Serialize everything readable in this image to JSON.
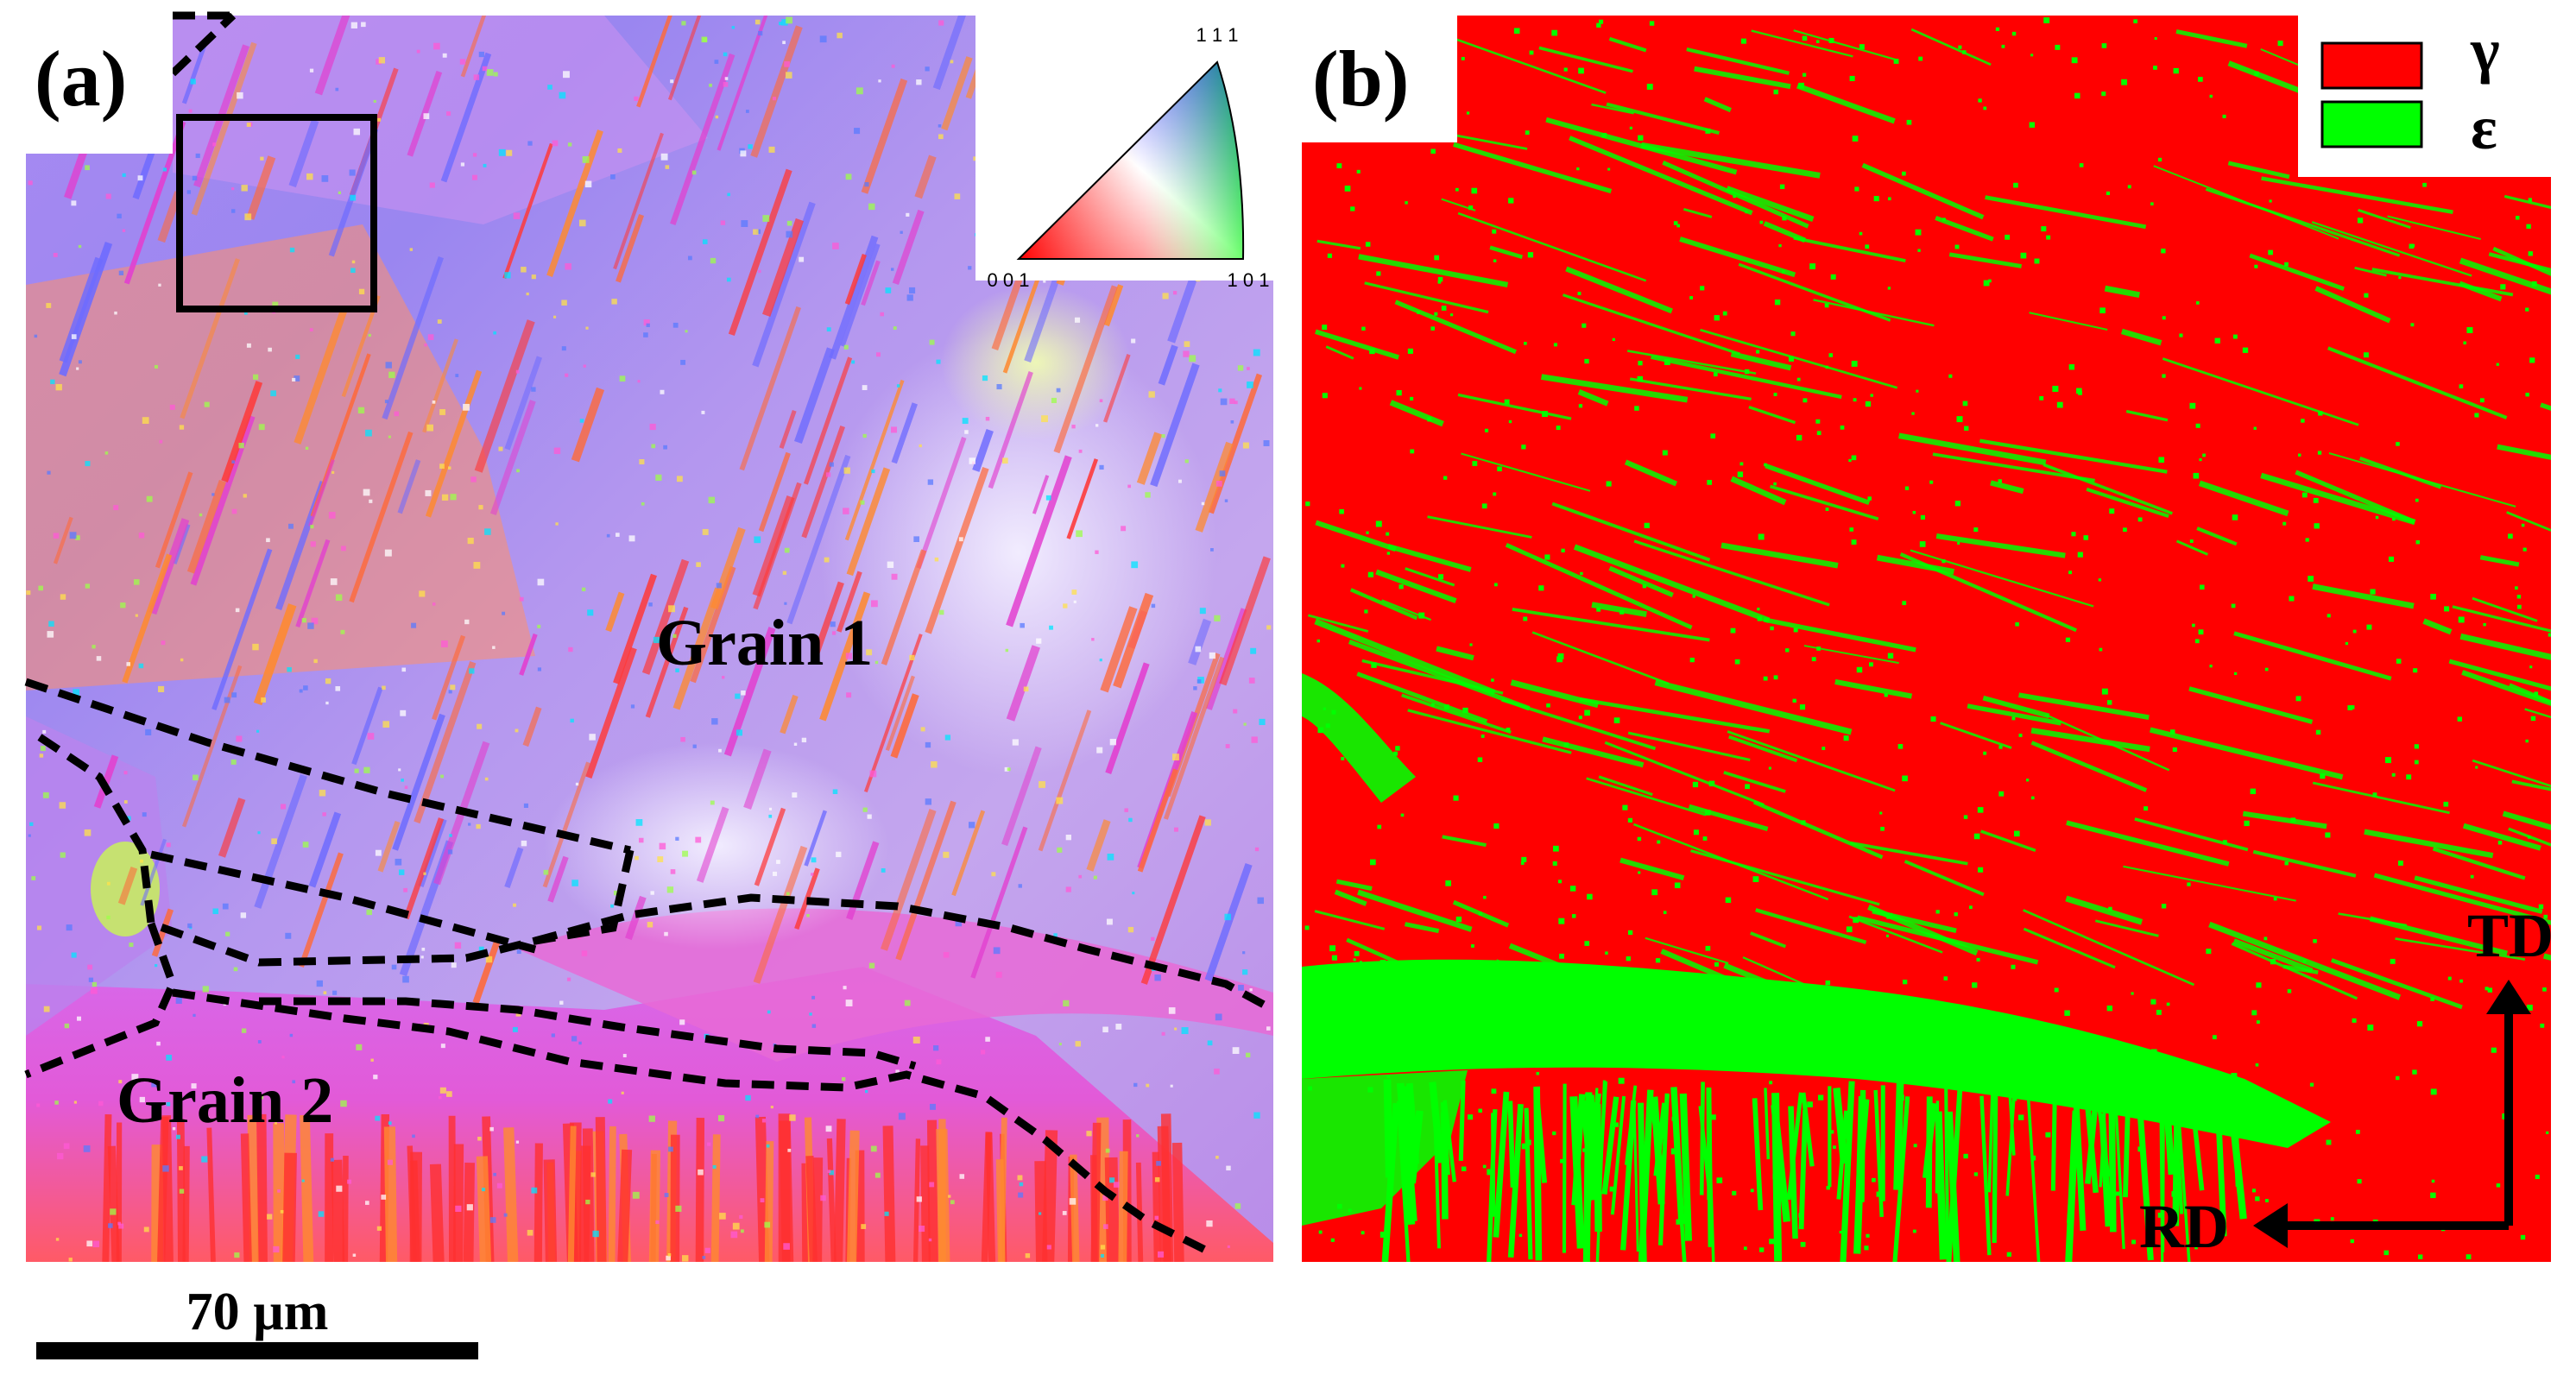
{
  "panel_a": {
    "label": "(a)",
    "grain_1_label": "Grain 1",
    "grain_2_label": "Grain 2",
    "ipf_key": {
      "top": "1 1 1",
      "bottom_left": "0 0 1",
      "bottom_right": "1 0 1"
    },
    "scale_bar_label": "70 µm"
  },
  "panel_b": {
    "label": "(b)",
    "legend": [
      {
        "symbol": "γ",
        "color": "#ff0000"
      },
      {
        "symbol": "ε",
        "color": "#00ff00"
      }
    ],
    "axis_td": "TD",
    "axis_rd": "RD"
  },
  "colors": {
    "gamma_phase": "#ff0000",
    "epsilon_phase": "#00ff00",
    "ipf_blue": "#7f7fff",
    "ipf_magenta": "#d85cf0",
    "ipf_red": "#ff3a3a",
    "ipf_orange": "#ff8a30",
    "boundary": "#000000"
  }
}
